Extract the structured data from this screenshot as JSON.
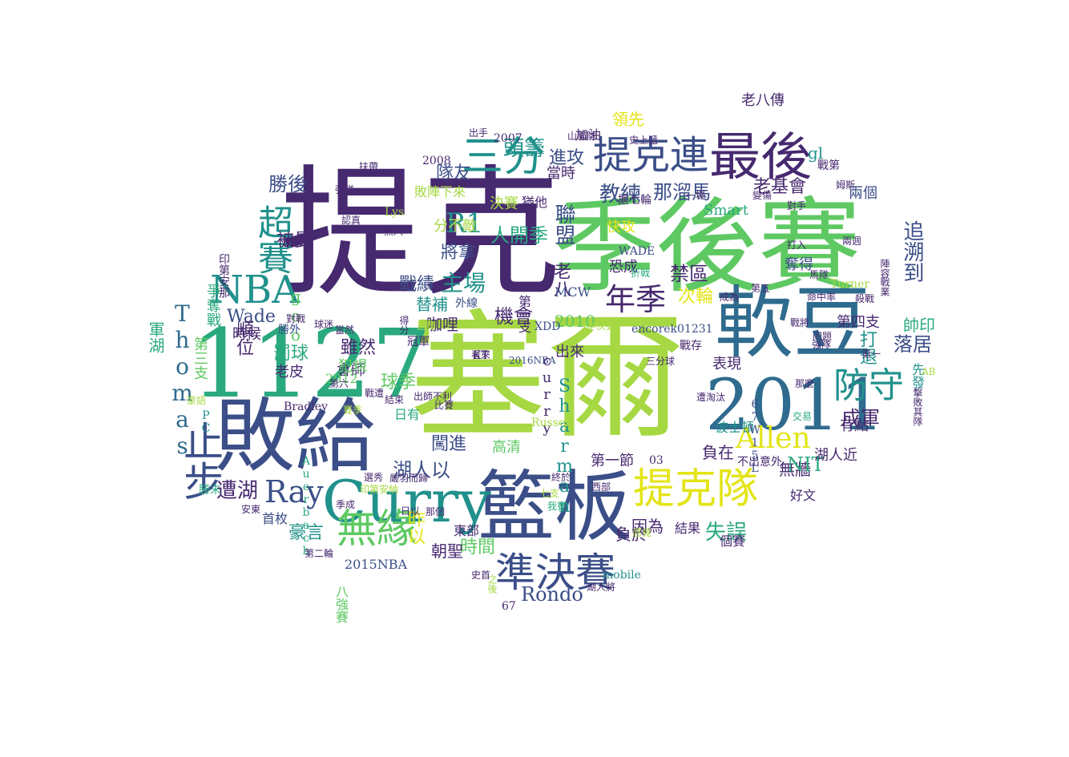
{
  "palette": {
    "purple": "#46296f",
    "indigo": "#3b4e88",
    "blue": "#2f6b8e",
    "teal": "#21918c",
    "sea": "#2aa97f",
    "green": "#5ec962",
    "lime": "#a6d843",
    "yellow": "#e3e418"
  },
  "words": [
    {
      "text": "塞爾",
      "weight": 1.0,
      "color": "lime"
    },
    {
      "text": "提克",
      "weight": 0.96,
      "color": "purple"
    },
    {
      "text": "季後賽",
      "weight": 0.74,
      "color": "green"
    },
    {
      "text": "1127",
      "weight": 0.7,
      "color": "sea"
    },
    {
      "text": "敗給",
      "weight": 0.6,
      "color": "indigo"
    },
    {
      "text": "軟豆",
      "weight": 0.58,
      "color": "blue"
    },
    {
      "text": "籃板",
      "weight": 0.56,
      "color": "indigo"
    },
    {
      "text": "2011",
      "weight": 0.5,
      "color": "blue"
    },
    {
      "text": "Curry",
      "weight": 0.42,
      "color": "teal"
    },
    {
      "text": "最後",
      "weight": 0.38,
      "color": "purple"
    },
    {
      "text": "提克連",
      "weight": 0.3,
      "color": "indigo"
    },
    {
      "text": "提克隊",
      "weight": 0.3,
      "color": "yellow"
    },
    {
      "text": "準決賽",
      "weight": 0.27,
      "color": "indigo"
    },
    {
      "text": "止步",
      "weight": 0.26,
      "color": "indigo"
    },
    {
      "text": "NBA",
      "weight": 0.24,
      "color": "teal"
    },
    {
      "text": "三分",
      "weight": 0.25,
      "color": "teal"
    },
    {
      "text": "無緣",
      "weight": 0.24,
      "color": "green"
    },
    {
      "text": "Ray",
      "weight": 0.21,
      "color": "indigo"
    },
    {
      "text": "超賽",
      "weight": 0.22,
      "color": "teal"
    },
    {
      "text": "Allen",
      "weight": 0.2,
      "color": "yellow"
    },
    {
      "text": "防守",
      "weight": 0.2,
      "color": "teal"
    },
    {
      "text": "年季",
      "weight": 0.2,
      "color": "purple"
    },
    {
      "text": "R1",
      "weight": 0.2,
      "color": "teal"
    },
    {
      "text": "Thomas",
      "weight": 0.17,
      "color": "blue"
    },
    {
      "text": "主場",
      "weight": 0.16,
      "color": "teal"
    },
    {
      "text": "追溯到",
      "weight": 0.15,
      "color": "indigo"
    },
    {
      "text": "Rondo",
      "weight": 0.14,
      "color": "indigo"
    },
    {
      "text": "機會",
      "weight": 0.15,
      "color": "purple"
    },
    {
      "text": "教練",
      "weight": 0.15,
      "color": "indigo"
    },
    {
      "text": "那溜馬",
      "weight": 0.14,
      "color": "indigo"
    },
    {
      "text": "Sharman",
      "weight": 0.13,
      "color": "teal"
    },
    {
      "text": "老基會",
      "weight": 0.13,
      "color": "purple"
    },
    {
      "text": "成軍",
      "weight": 0.13,
      "color": "purple"
    },
    {
      "text": "落居",
      "weight": 0.13,
      "color": "indigo"
    },
    {
      "text": "湖人以",
      "weight": 0.13,
      "color": "indigo"
    },
    {
      "text": "遭湖",
      "weight": 0.13,
      "color": "purple"
    },
    {
      "text": "失誤",
      "weight": 0.13,
      "color": "sea"
    },
    {
      "text": "勝後",
      "weight": 0.12,
      "color": "indigo"
    },
    {
      "text": "頭籌",
      "weight": 0.12,
      "color": "teal"
    },
    {
      "text": "人開季",
      "weight": 0.12,
      "color": "sea"
    },
    {
      "text": "聯盟",
      "weight": 0.12,
      "color": "indigo"
    },
    {
      "text": "禁區",
      "weight": 0.12,
      "color": "purple"
    },
    {
      "text": "次輪",
      "weight": 0.12,
      "color": "yellow"
    },
    {
      "text": "戰績",
      "weight": 0.11,
      "color": "indigo"
    },
    {
      "text": "將拿",
      "weight": 0.11,
      "color": "indigo"
    },
    {
      "text": "被曼",
      "weight": 0.11,
      "color": "purple"
    },
    {
      "text": "Wade",
      "weight": 0.11,
      "color": "indigo"
    },
    {
      "text": "球季",
      "weight": 0.11,
      "color": "green"
    },
    {
      "text": "罰球",
      "weight": 0.11,
      "color": "sea"
    },
    {
      "text": "順位",
      "weight": 0.11,
      "color": "purple"
    },
    {
      "text": "打退",
      "weight": 0.11,
      "color": "teal"
    },
    {
      "text": "豪言",
      "weight": 0.1,
      "color": "teal"
    },
    {
      "text": "時間",
      "weight": 0.1,
      "color": "green"
    },
    {
      "text": "闖進",
      "weight": 0.1,
      "color": "indigo"
    },
    {
      "text": "負在",
      "weight": 0.1,
      "color": "purple"
    },
    {
      "text": "負於",
      "weight": 0.1,
      "color": "purple"
    },
    {
      "text": "無牆",
      "weight": 0.1,
      "color": "purple"
    },
    {
      "text": "NIT",
      "weight": 0.1,
      "color": "sea"
    },
    {
      "text": "gl",
      "weight": 0.1,
      "color": "teal"
    },
    {
      "text": "進攻",
      "weight": 0.1,
      "color": "indigo"
    },
    {
      "text": "隊友",
      "weight": 0.1,
      "color": "indigo"
    },
    {
      "text": "雖然",
      "weight": 0.1,
      "color": "purple"
    },
    {
      "text": "老八",
      "weight": 0.1,
      "color": "purple"
    },
    {
      "text": "因為",
      "weight": 0.1,
      "color": "purple"
    },
    {
      "text": "領先",
      "weight": 0.09,
      "color": "yellow"
    },
    {
      "text": "老八傳",
      "weight": 0.09,
      "color": "purple"
    },
    {
      "text": "第四支",
      "weight": 0.09,
      "color": "purple"
    },
    {
      "text": "帥印",
      "weight": 0.09,
      "color": "sea"
    },
    {
      "text": "奪得",
      "weight": 0.09,
      "color": "indigo"
    },
    {
      "text": "咖哩",
      "weight": 0.09,
      "color": "purple"
    },
    {
      "text": "替補",
      "weight": 0.09,
      "color": "teal"
    },
    {
      "text": "朝聖",
      "weight": 0.09,
      "color": "purple"
    },
    {
      "text": "昨以",
      "weight": 0.09,
      "color": "yellow"
    },
    {
      "text": "軍湖",
      "weight": 0.09,
      "color": "sea"
    },
    {
      "text": "爭奪戰",
      "weight": 0.09,
      "color": "sea"
    },
    {
      "text": "有點",
      "weight": 0.09,
      "color": "purple"
    },
    {
      "text": "2010",
      "weight": 0.09,
      "color": "green"
    },
    {
      "text": "分不敵",
      "weight": 0.08,
      "color": "lime"
    },
    {
      "text": "決賽",
      "weight": 0.08,
      "color": "lime"
    },
    {
      "text": "快攻",
      "weight": 0.08,
      "color": "yellow"
    },
    {
      "text": "恐成",
      "weight": 0.08,
      "color": "purple"
    },
    {
      "text": "當時",
      "weight": 0.08,
      "color": "purple"
    },
    {
      "text": "兩個",
      "weight": 0.08,
      "color": "indigo"
    },
    {
      "text": "Smart",
      "weight": 0.08,
      "color": "sea"
    },
    {
      "text": "會師",
      "weight": 0.08,
      "color": "purple"
    },
    {
      "text": "goo",
      "weight": 0.08,
      "color": "green"
    },
    {
      "text": "時候",
      "weight": 0.08,
      "color": "purple"
    },
    {
      "text": "第三支",
      "weight": 0.08,
      "color": "green"
    },
    {
      "text": "犯規",
      "weight": 0.08,
      "color": "green"
    },
    {
      "text": "老皮",
      "weight": 0.08,
      "color": "purple"
    },
    {
      "text": "高清",
      "weight": 0.08,
      "color": "green"
    },
    {
      "text": "第一節",
      "weight": 0.08,
      "color": "purple"
    },
    {
      "text": "出來",
      "weight": 0.08,
      "color": "purple"
    },
    {
      "text": "表現",
      "weight": 0.08,
      "color": "purple"
    },
    {
      "text": "curry",
      "weight": 0.08,
      "color": "purple"
    },
    {
      "text": "湖人近",
      "weight": 0.08,
      "color": "purple"
    },
    {
      "text": "波士頓",
      "weight": 0.07,
      "color": "teal"
    },
    {
      "text": "不出意外",
      "weight": 0.06,
      "color": "purple"
    },
    {
      "text": "結果",
      "weight": 0.07,
      "color": "purple"
    },
    {
      "text": "好文",
      "weight": 0.07,
      "color": "purple"
    },
    {
      "text": "個賽",
      "weight": 0.07,
      "color": "purple"
    },
    {
      "text": "東部",
      "weight": 0.07,
      "color": "purple"
    },
    {
      "text": "首枚",
      "weight": 0.07,
      "color": "indigo"
    },
    {
      "text": "2015NBA",
      "weight": 0.07,
      "color": "indigo"
    },
    {
      "text": "日有",
      "weight": 0.07,
      "color": "sea"
    },
    {
      "text": "2012",
      "weight": 0.06,
      "color": "green"
    },
    {
      "text": "先發",
      "weight": 0.06,
      "color": "teal"
    },
    {
      "text": "戰第",
      "weight": 0.06,
      "color": "purple"
    },
    {
      "text": "戰存",
      "weight": 0.06,
      "color": "purple"
    },
    {
      "text": "MCW",
      "weight": 0.06,
      "color": "indigo"
    },
    {
      "text": "第一支",
      "weight": 0.06,
      "color": "purple"
    },
    {
      "text": "加油",
      "weight": 0.06,
      "color": "purple"
    },
    {
      "text": "2007",
      "weight": 0.06,
      "color": "purple"
    },
    {
      "text": "Auerbach",
      "weight": 0.06,
      "color": "sea"
    },
    {
      "text": "八強賽",
      "weight": 0.06,
      "color": "green"
    },
    {
      "text": "印第安那",
      "weight": 0.06,
      "color": "purple"
    },
    {
      "text": "猶他",
      "weight": 0.06,
      "color": "purple"
    },
    {
      "text": "03",
      "weight": 0.06,
      "color": "purple"
    },
    {
      "text": "WADE",
      "weight": 0.05,
      "color": "indigo"
    },
    {
      "text": "encorek01231",
      "weight": 0.05,
      "color": "indigo"
    },
    {
      "text": "Turner",
      "weight": 0.05,
      "color": "lime"
    },
    {
      "text": "XDD",
      "weight": 0.05,
      "color": "indigo"
    },
    {
      "text": "KT",
      "weight": 0.05,
      "color": "purple"
    },
    {
      "text": "mobile",
      "weight": 0.05,
      "color": "teal"
    },
    {
      "text": "Russell",
      "weight": 0.05,
      "color": "lime"
    },
    {
      "text": "Bradley",
      "weight": 0.05,
      "color": "purple"
    },
    {
      "text": "Lys",
      "weight": 0.05,
      "color": "lime"
    },
    {
      "text": "2008",
      "weight": 0.05,
      "color": "purple"
    },
    {
      "text": "67W15L",
      "weight": 0.05,
      "color": "indigo"
    },
    {
      "text": "2016NBA",
      "weight": 0.04,
      "color": "indigo"
    },
    {
      "text": "AB",
      "weight": 0.05,
      "color": "lime"
    },
    {
      "text": "PC",
      "weight": 0.05,
      "color": "teal"
    },
    {
      "text": "67",
      "weight": 0.04,
      "color": "purple"
    },
    {
      "text": "敗陣下來",
      "weight": 0.06,
      "color": "lime"
    },
    {
      "text": "半決賽",
      "weight": 0.05,
      "color": "lime"
    },
    {
      "text": "外線",
      "weight": 0.05,
      "color": "indigo"
    },
    {
      "text": "搶七輪",
      "weight": 0.05,
      "color": "purple"
    },
    {
      "text": "勝外",
      "weight": 0.05,
      "color": "indigo"
    },
    {
      "text": "勝末",
      "weight": 0.05,
      "color": "sea"
    },
    {
      "text": "冠軍",
      "weight": 0.05,
      "color": "purple"
    },
    {
      "text": "黑八",
      "weight": 0.05,
      "color": "purple"
    },
    {
      "text": "得分",
      "weight": 0.05,
      "color": "purple"
    },
    {
      "text": "認真",
      "weight": 0.05,
      "color": "purple"
    },
    {
      "text": "那麼",
      "weight": 0.05,
      "color": "purple"
    },
    {
      "text": "安東",
      "weight": 0.05,
      "color": "purple"
    },
    {
      "text": "季成",
      "weight": 0.05,
      "color": "purple"
    },
    {
      "text": "日以",
      "weight": 0.05,
      "color": "purple"
    },
    {
      "text": "那個",
      "weight": 0.05,
      "color": "purple"
    },
    {
      "text": "我賽",
      "weight": 0.05,
      "color": "sea"
    },
    {
      "text": "西部",
      "weight": 0.05,
      "color": "purple"
    },
    {
      "text": "七支",
      "weight": 0.04,
      "color": "lime"
    },
    {
      "text": "終於",
      "weight": 0.05,
      "color": "purple"
    },
    {
      "text": "選秀",
      "weight": 0.05,
      "color": "purple"
    },
    {
      "text": "之後",
      "weight": 0.04,
      "color": "lime"
    },
    {
      "text": "史首",
      "weight": 0.04,
      "color": "purple"
    },
    {
      "text": "湖人將",
      "weight": 0.04,
      "color": "purple"
    },
    {
      "text": "感覺",
      "weight": 0.05,
      "color": "lime"
    },
    {
      "text": "第二輪",
      "weight": 0.04,
      "color": "purple"
    },
    {
      "text": "印第安納",
      "weight": 0.04,
      "color": "lime"
    },
    {
      "text": "嚴羽而歸",
      "weight": 0.04,
      "color": "purple"
    },
    {
      "text": "出師不利",
      "weight": 0.04,
      "color": "purple"
    },
    {
      "text": "三分球",
      "weight": 0.04,
      "color": "purple"
    },
    {
      "text": "看來",
      "weight": 0.04,
      "color": "purple"
    },
    {
      "text": "命中率",
      "weight": 0.04,
      "color": "purple"
    },
    {
      "text": "成為",
      "weight": 0.04,
      "color": "purple"
    },
    {
      "text": "第五",
      "weight": 0.04,
      "color": "purple"
    },
    {
      "text": "戰將",
      "weight": 0.04,
      "color": "purple"
    },
    {
      "text": "同題",
      "weight": 0.04,
      "color": "purple"
    },
    {
      "text": "打入",
      "weight": 0.04,
      "color": "purple"
    },
    {
      "text": "馬隊",
      "weight": 0.04,
      "color": "purple"
    },
    {
      "text": "陣容",
      "weight": 0.04,
      "color": "purple"
    },
    {
      "text": "折戟",
      "weight": 0.04,
      "color": "sea"
    },
    {
      "text": "兩週",
      "weight": 0.04,
      "color": "purple"
    },
    {
      "text": "擊敗其隊",
      "weight": 0.04,
      "color": "purple"
    },
    {
      "text": "交易",
      "weight": 0.04,
      "color": "sea"
    },
    {
      "text": "遭淘汰",
      "weight": 0.04,
      "color": "purple"
    },
    {
      "text": "扶帶",
      "weight": 0.04,
      "color": "purple"
    },
    {
      "text": "強碰",
      "weight": 0.04,
      "color": "purple"
    },
    {
      "text": "山貓隊",
      "weight": 0.04,
      "color": "purple"
    },
    {
      "text": "史上遞",
      "weight": 0.04,
      "color": "purple"
    },
    {
      "text": "出手",
      "weight": 0.04,
      "color": "purple"
    },
    {
      "text": "姆斯",
      "weight": 0.04,
      "color": "purple"
    },
    {
      "text": "對手",
      "weight": 0.04,
      "color": "purple"
    },
    {
      "text": "變傷",
      "weight": 0.04,
      "color": "purple"
    },
    {
      "text": "一場",
      "weight": 0.04,
      "color": "purple"
    },
    {
      "text": "雷檢",
      "weight": 0.04,
      "color": "purple"
    },
    {
      "text": "當然",
      "weight": 0.04,
      "color": "purple"
    },
    {
      "text": "球迷",
      "weight": 0.04,
      "color": "purple"
    },
    {
      "text": "對戰",
      "weight": 0.04,
      "color": "purple"
    },
    {
      "text": "豪語",
      "weight": 0.05,
      "color": "lime"
    },
    {
      "text": "第六",
      "weight": 0.04,
      "color": "purple"
    },
    {
      "text": "賽季",
      "weight": 0.04,
      "color": "lime"
    },
    {
      "text": "戰遭",
      "weight": 0.04,
      "color": "purple"
    },
    {
      "text": "結束",
      "weight": 0.04,
      "color": "purple"
    },
    {
      "text": "比賽",
      "weight": 0.04,
      "color": "purple"
    },
    {
      "text": "選擇",
      "weight": 0.04,
      "color": "lime"
    },
    {
      "text": "強隊",
      "weight": 0.04,
      "color": "purple"
    },
    {
      "text": "戰業",
      "weight": 0.04,
      "color": "purple"
    },
    {
      "text": "殺戰",
      "weight": 0.04,
      "color": "purple"
    },
    {
      "text": "第一",
      "weight": 0.04,
      "color": "purple"
    },
    {
      "text": "選賽",
      "weight": 0.04,
      "color": "purple"
    },
    {
      "text": "禁衫",
      "weight": 0.04,
      "color": "purple"
    },
    {
      "text": "丟",
      "weight": 0.04,
      "color": "lime"
    }
  ]
}
